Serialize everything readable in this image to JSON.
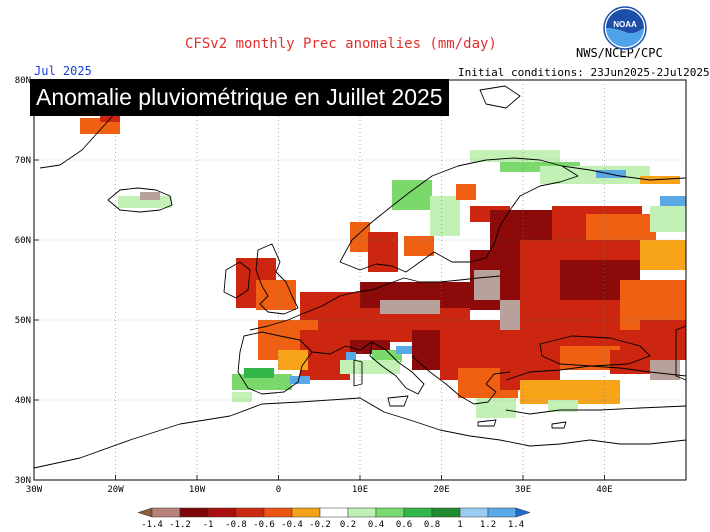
{
  "header": {
    "title": "CFSv2 monthly Prec anomalies (mm/day)",
    "credit": "NWS/NCEP/CPC",
    "month": "Jul 2025",
    "initial_conditions": "Initial conditions: 23Jun2025-2Jul2025",
    "overlay_title": "Anomalie pluviométrique en Juillet 2025",
    "logo_text": "NOAA"
  },
  "axes": {
    "lat_labels": [
      "30N",
      "40N",
      "50N",
      "60N",
      "70N",
      "80N"
    ],
    "lon_labels": [
      "30W",
      "20W",
      "10W",
      "0",
      "10E",
      "20E",
      "30E",
      "40E"
    ]
  },
  "legend": {
    "labels": [
      "-1.4",
      "-1.2",
      "-1",
      "-0.8",
      "-0.6",
      "-0.4",
      "-0.2",
      "0.2",
      "0.4",
      "0.6",
      "0.8",
      "1",
      "1.2",
      "1.4"
    ],
    "colors": [
      "#8c5a3c",
      "#b8837a",
      "#7d0707",
      "#a90f0f",
      "#cc2a10",
      "#eb5512",
      "#f5a21a",
      "#ffffff",
      "#bff0b5",
      "#7ad96f",
      "#34b64a",
      "#1f8c30",
      "#99ccf0",
      "#5aa8e6",
      "#1f6fd1"
    ]
  },
  "map_colors": {
    "dry_strong": "#b9a19b",
    "dry_dark": "#8c0a0a",
    "dry_red": "#cc2510",
    "dry_orange": "#f06012",
    "dry_light": "#f7a418",
    "wet_light": "#c2f0b5",
    "wet_mid": "#7bd96c",
    "wet_dark": "#33b54a",
    "wet_blue": "#5aa8e6"
  }
}
